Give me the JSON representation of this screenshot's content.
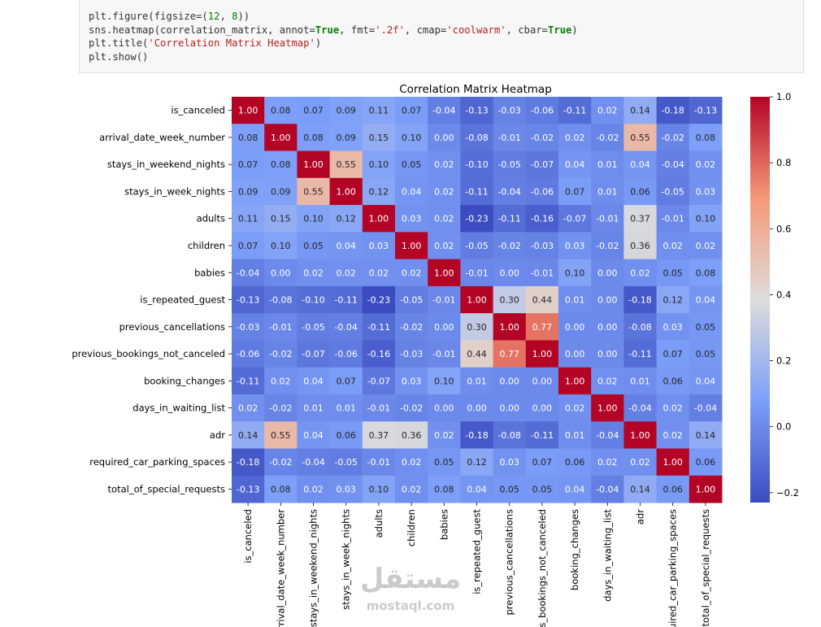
{
  "code": {
    "lines": [
      [
        {
          "t": "plt.figure(figsize=(",
          "c": ""
        },
        {
          "t": "12",
          "c": "num"
        },
        {
          "t": ", ",
          "c": ""
        },
        {
          "t": "8",
          "c": "num"
        },
        {
          "t": "))",
          "c": ""
        }
      ],
      [
        {
          "t": "sns.heatmap(correlation_matrix, annot=",
          "c": ""
        },
        {
          "t": "True",
          "c": "kw"
        },
        {
          "t": ", fmt=",
          "c": ""
        },
        {
          "t": "'.2f'",
          "c": "str"
        },
        {
          "t": ", cmap=",
          "c": ""
        },
        {
          "t": "'coolwarm'",
          "c": "str"
        },
        {
          "t": ", cbar=",
          "c": ""
        },
        {
          "t": "True",
          "c": "kw"
        },
        {
          "t": ")",
          "c": ""
        }
      ],
      [
        {
          "t": "plt.title(",
          "c": ""
        },
        {
          "t": "'Correlation Matrix Heatmap'",
          "c": "str"
        },
        {
          "t": ")",
          "c": ""
        }
      ],
      [
        {
          "t": "plt.show()",
          "c": ""
        }
      ]
    ]
  },
  "watermark": {
    "arabic": "مستقل",
    "latin": "mostaql.com"
  },
  "chart_data": {
    "type": "heatmap",
    "title": "Correlation Matrix Heatmap",
    "row_labels": [
      "is_canceled",
      "arrival_date_week_number",
      "stays_in_weekend_nights",
      "stays_in_week_nights",
      "adults",
      "children",
      "babies",
      "is_repeated_guest",
      "previous_cancellations",
      "previous_bookings_not_canceled",
      "booking_changes",
      "days_in_waiting_list",
      "adr",
      "required_car_parking_spaces",
      "total_of_special_requests"
    ],
    "col_labels": [
      "is_canceled",
      "arrival_date_week_number",
      "stays_in_weekend_nights",
      "stays_in_week_nights",
      "adults",
      "children",
      "babies",
      "is_repeated_guest",
      "previous_cancellations",
      "previous_bookings_not_canceled",
      "booking_changes",
      "days_in_waiting_list",
      "adr",
      "required_car_parking_spaces",
      "total_of_special_requests"
    ],
    "col_labels_displayed": [
      "is_canceled",
      "arrival_date_week_number",
      "stays_in_weekend_nights",
      "stays_in_week_nights",
      "adults",
      "children",
      "babies",
      "is_repeated_guest",
      "previous_cancellations",
      "s_bookings_not_canceled",
      "booking_changes",
      "days_in_waiting_list",
      "adr",
      "uired_car_parking_spaces",
      "total_of_special_requests"
    ],
    "values": [
      [
        1.0,
        0.08,
        0.07,
        0.09,
        0.11,
        0.07,
        -0.04,
        -0.13,
        -0.03,
        -0.06,
        -0.11,
        0.02,
        0.14,
        -0.18,
        -0.13
      ],
      [
        0.08,
        1.0,
        0.08,
        0.09,
        0.15,
        0.1,
        0.0,
        -0.08,
        -0.01,
        -0.02,
        0.02,
        -0.02,
        0.55,
        -0.02,
        0.08
      ],
      [
        0.07,
        0.08,
        1.0,
        0.55,
        0.1,
        0.05,
        0.02,
        -0.1,
        -0.05,
        -0.07,
        0.04,
        0.01,
        0.04,
        -0.04,
        0.02
      ],
      [
        0.09,
        0.09,
        0.55,
        1.0,
        0.12,
        0.04,
        0.02,
        -0.11,
        -0.04,
        -0.06,
        0.07,
        0.01,
        0.06,
        -0.05,
        0.03
      ],
      [
        0.11,
        0.15,
        0.1,
        0.12,
        1.0,
        0.03,
        0.02,
        -0.23,
        -0.11,
        -0.16,
        -0.07,
        -0.01,
        0.37,
        -0.01,
        0.1
      ],
      [
        0.07,
        0.1,
        0.05,
        0.04,
        0.03,
        1.0,
        0.02,
        -0.05,
        -0.02,
        -0.03,
        0.03,
        -0.02,
        0.36,
        0.02,
        0.02
      ],
      [
        -0.04,
        0.0,
        0.02,
        0.02,
        0.02,
        0.02,
        1.0,
        -0.01,
        -0.0,
        -0.01,
        0.1,
        -0.0,
        0.02,
        0.05,
        0.08
      ],
      [
        -0.13,
        -0.08,
        -0.1,
        -0.11,
        -0.23,
        -0.05,
        -0.01,
        1.0,
        0.3,
        0.44,
        0.01,
        -0.0,
        -0.18,
        0.12,
        0.04
      ],
      [
        -0.03,
        -0.01,
        -0.05,
        -0.04,
        -0.11,
        -0.02,
        -0.0,
        0.3,
        1.0,
        0.77,
        0.0,
        -0.0,
        -0.08,
        0.03,
        0.05
      ],
      [
        -0.06,
        -0.02,
        -0.07,
        -0.06,
        -0.16,
        -0.03,
        -0.01,
        0.44,
        0.77,
        1.0,
        0.0,
        -0.0,
        -0.11,
        0.07,
        0.05
      ],
      [
        -0.11,
        0.02,
        0.04,
        0.07,
        -0.07,
        0.03,
        0.1,
        0.01,
        0.0,
        0.0,
        1.0,
        0.02,
        0.01,
        0.06,
        0.04
      ],
      [
        0.02,
        -0.02,
        0.01,
        0.01,
        -0.01,
        -0.02,
        -0.0,
        -0.0,
        -0.0,
        -0.0,
        0.02,
        1.0,
        -0.04,
        0.02,
        -0.04
      ],
      [
        0.14,
        0.55,
        0.04,
        0.06,
        0.37,
        0.36,
        0.02,
        -0.18,
        -0.08,
        -0.11,
        0.01,
        -0.04,
        1.0,
        0.02,
        0.14
      ],
      [
        -0.18,
        -0.02,
        -0.04,
        -0.05,
        -0.01,
        0.02,
        0.05,
        0.12,
        0.03,
        0.07,
        0.06,
        0.02,
        0.02,
        1.0,
        0.06
      ],
      [
        -0.13,
        0.08,
        0.02,
        0.03,
        0.1,
        0.02,
        0.08,
        0.04,
        0.05,
        0.05,
        0.04,
        -0.04,
        0.14,
        0.06,
        1.0
      ]
    ],
    "colormap": "coolwarm",
    "vmin": -0.23,
    "vmax": 1.0,
    "colorbar": {
      "ticks": [
        1.0,
        0.8,
        0.6,
        0.4,
        0.2,
        0.0,
        -0.2
      ],
      "tick_labels": [
        "1.0",
        "0.8",
        "0.6",
        "0.4",
        "0.2",
        "0.0",
        "−0.2"
      ]
    },
    "annotation_format": ".2f"
  }
}
